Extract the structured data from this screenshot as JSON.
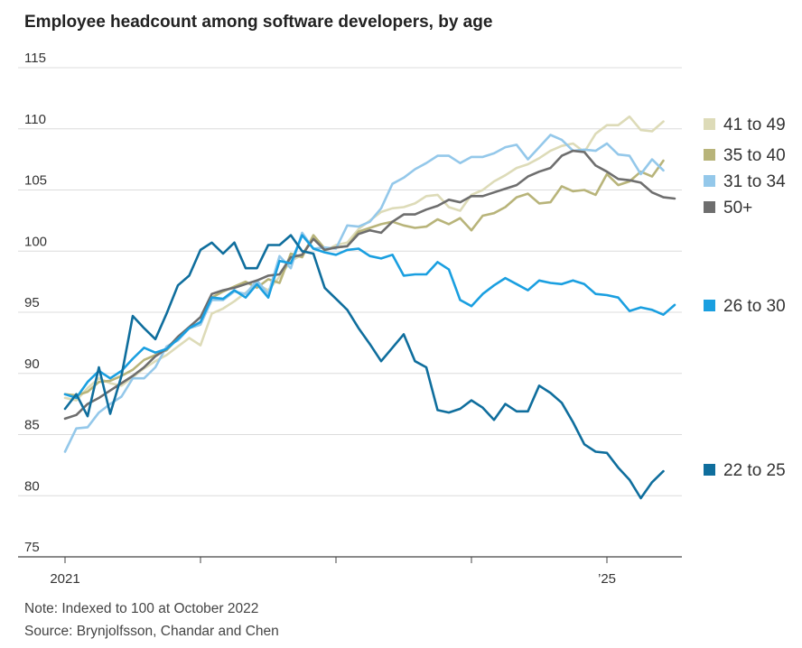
{
  "title": "Employee headcount among software developers, by age",
  "note": "Note: Indexed to 100 at October 2022",
  "source": "Source: Brynjolfsson, Chandar and Chen",
  "chart_data": {
    "type": "line",
    "title": "Employee headcount among software developers, by age",
    "xlabel": "",
    "ylabel": "",
    "ylim": [
      75,
      115
    ],
    "yticks": [
      75,
      80,
      85,
      90,
      95,
      100,
      105,
      110,
      115
    ],
    "xticks": [
      {
        "label": "2021",
        "month": 0
      },
      {
        "label": "",
        "month": 12
      },
      {
        "label": "",
        "month": 24
      },
      {
        "label": "",
        "month": 36
      },
      {
        "label": "",
        "month": 48
      },
      {
        "label": "’25",
        "month": 48
      }
    ],
    "x_range_months": [
      0,
      54
    ],
    "grid": "horizontal",
    "legend_placement": "right, at line ends",
    "series": [
      {
        "name": "41 to 49",
        "color": "#dddbb8",
        "values": [
          88.0,
          87.8,
          88.8,
          89.6,
          89.2,
          89.0,
          89.7,
          90.4,
          91.0,
          91.5,
          92.2,
          92.9,
          92.3,
          94.9,
          95.3,
          95.9,
          96.6,
          97.3,
          96.8,
          97.9,
          99.2,
          99.7,
          101.2,
          100.0,
          100.5,
          100.7,
          101.8,
          102.5,
          103.2,
          103.5,
          103.6,
          103.9,
          104.5,
          104.6,
          103.6,
          103.3,
          104.6,
          105.0,
          105.7,
          106.2,
          106.8,
          107.1,
          107.6,
          108.2,
          108.6,
          108.8,
          108.1,
          109.6,
          110.3,
          110.3,
          111.0,
          109.9,
          109.8,
          110.6
        ]
      },
      {
        "name": "35 to 40",
        "color": "#b8b47a",
        "values": [
          88.3,
          88.2,
          88.5,
          89.3,
          89.4,
          89.8,
          90.3,
          91.1,
          91.5,
          91.9,
          92.9,
          93.7,
          94.0,
          96.2,
          96.7,
          97.1,
          97.5,
          97.0,
          97.7,
          97.4,
          99.8,
          99.5,
          101.3,
          100.2,
          100.3,
          100.4,
          101.6,
          101.9,
          102.2,
          102.4,
          102.1,
          101.9,
          102.0,
          102.6,
          102.2,
          102.7,
          101.7,
          102.9,
          103.1,
          103.6,
          104.4,
          104.7,
          103.9,
          104.0,
          105.3,
          104.9,
          105.0,
          104.6,
          106.3,
          105.4,
          105.7,
          106.5,
          106.1,
          107.4
        ]
      },
      {
        "name": "31 to 34",
        "color": "#94c8ea",
        "values": [
          83.6,
          85.5,
          85.6,
          86.8,
          87.5,
          88.1,
          89.6,
          89.6,
          90.5,
          92.2,
          92.7,
          93.7,
          94.0,
          96.0,
          96.0,
          96.7,
          96.5,
          97.6,
          96.5,
          99.6,
          98.6,
          101.5,
          100.2,
          100.3,
          100.2,
          102.1,
          102.0,
          102.4,
          103.5,
          105.5,
          106.0,
          106.7,
          107.2,
          107.8,
          107.8,
          107.2,
          107.7,
          107.7,
          108.0,
          108.5,
          108.7,
          107.5,
          108.5,
          109.5,
          109.1,
          108.2,
          108.3,
          108.2,
          108.8,
          107.9,
          107.8,
          106.3,
          107.5,
          106.6
        ]
      },
      {
        "name": "50+",
        "color": "#6e6e6e",
        "values": [
          86.3,
          86.6,
          87.5,
          88.0,
          88.6,
          89.2,
          89.8,
          90.5,
          91.4,
          92.0,
          93.0,
          93.8,
          94.6,
          96.5,
          96.8,
          97.0,
          97.3,
          97.6,
          98.0,
          98.1,
          99.5,
          99.7,
          101.0,
          100.1,
          100.3,
          100.4,
          101.4,
          101.7,
          101.5,
          102.4,
          103.0,
          103.0,
          103.4,
          103.7,
          104.2,
          104.0,
          104.5,
          104.5,
          104.8,
          105.1,
          105.4,
          106.1,
          106.5,
          106.8,
          107.8,
          108.2,
          108.1,
          107.0,
          106.5,
          105.9,
          105.8,
          105.6,
          104.8,
          104.4,
          104.3
        ]
      },
      {
        "name": "26 to 30",
        "color": "#1a9fe0",
        "values": [
          88.3,
          88.0,
          89.3,
          90.2,
          89.6,
          90.2,
          91.2,
          92.1,
          91.7,
          92.0,
          92.8,
          93.7,
          94.2,
          96.2,
          96.1,
          96.8,
          96.2,
          97.3,
          96.2,
          99.2,
          99.0,
          101.3,
          100.2,
          99.9,
          99.7,
          100.1,
          100.2,
          99.6,
          99.4,
          99.7,
          98.0,
          98.1,
          98.1,
          99.1,
          98.5,
          96.0,
          95.5,
          96.5,
          97.2,
          97.8,
          97.3,
          96.8,
          97.6,
          97.4,
          97.3,
          97.6,
          97.3,
          96.5,
          96.4,
          96.2,
          95.1,
          95.4,
          95.2,
          94.8,
          95.6
        ]
      },
      {
        "name": "22 to 25",
        "color": "#0f6e9d",
        "values": [
          87.1,
          88.3,
          86.5,
          90.5,
          86.7,
          89.8,
          94.7,
          93.7,
          92.8,
          94.9,
          97.2,
          98.0,
          100.1,
          100.7,
          99.8,
          100.7,
          98.6,
          98.6,
          100.5,
          100.5,
          101.3,
          100.0,
          99.8,
          97.0,
          96.1,
          95.2,
          93.7,
          92.4,
          91.0,
          92.1,
          93.2,
          91.0,
          90.5,
          87.0,
          86.8,
          87.1,
          87.8,
          87.2,
          86.2,
          87.5,
          86.9,
          86.9,
          89.0,
          88.4,
          87.6,
          86.0,
          84.2,
          83.6,
          83.5,
          82.3,
          81.3,
          79.8,
          81.1,
          82.0
        ]
      }
    ]
  }
}
